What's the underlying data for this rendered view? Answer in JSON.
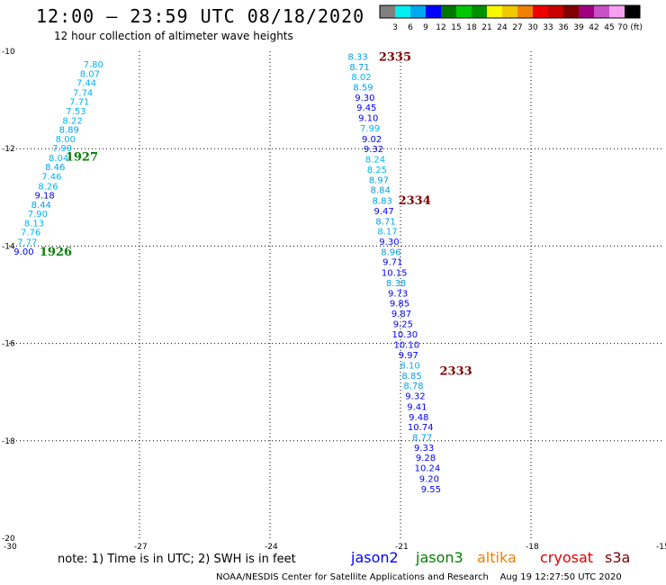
{
  "title": "12:00 – 23:59 UTC 08/18/2020",
  "subtitle": "12 hour collection of altimeter wave heights",
  "legend": {
    "colors": [
      "#808080",
      "#00f0f0",
      "#00a8f0",
      "#0000ff",
      "#007800",
      "#00c800",
      "#009000",
      "#f8f800",
      "#f0c800",
      "#f08000",
      "#f00000",
      "#c80000",
      "#800000",
      "#a00080",
      "#c850c8",
      "#f8a0f0",
      "#000000"
    ],
    "labels": [
      "3",
      "6",
      "9",
      "12",
      "15",
      "18",
      "21",
      "24",
      "27",
      "30",
      "33",
      "36",
      "39",
      "42",
      "45",
      "70 (ft)"
    ]
  },
  "axes": {
    "x_ticks": [
      "-30",
      "-27",
      "-24",
      "-21",
      "-18",
      "-15"
    ],
    "y_ticks": [
      "-10",
      "-12",
      "-14",
      "-16",
      "-18",
      "-20"
    ]
  },
  "note": "note: 1) Time is in UTC; 2) SWH is in feet",
  "missions": [
    {
      "name": "jason2",
      "color": "#0000ff"
    },
    {
      "name": "jason3",
      "color": "#008000"
    },
    {
      "name": "altika",
      "color": "#f08000"
    },
    {
      "name": "cryosat",
      "color": "#e00000"
    },
    {
      "name": "s3a",
      "color": "#800000"
    }
  ],
  "credit": "NOAA/NESDIS Center for Satellite Applications and Research",
  "timestamp": "Aug 19 12:27:50 UTC 2020",
  "chart_data": {
    "type": "scatter",
    "x_range": [
      -30,
      -15
    ],
    "y_range": [
      -20,
      -10
    ],
    "color_scale": "SWH (ft)",
    "tracks": [
      {
        "pass": "1926",
        "label_at": [
          -29.3,
          -14.1
        ],
        "label_color": "#008000",
        "points": [
          {
            "lon": -29.66,
            "lat": -14.1,
            "swh": "9.00"
          },
          {
            "lon": -29.58,
            "lat": -13.91,
            "swh": "7.77"
          },
          {
            "lon": -29.5,
            "lat": -13.71,
            "swh": "7.76"
          },
          {
            "lon": -29.42,
            "lat": -13.52,
            "swh": "8.13"
          },
          {
            "lon": -29.34,
            "lat": -13.33,
            "swh": "7.90"
          },
          {
            "lon": -29.26,
            "lat": -13.14,
            "swh": "8.44"
          },
          {
            "lon": -29.18,
            "lat": -12.95,
            "swh": "9.18"
          },
          {
            "lon": -29.1,
            "lat": -12.76,
            "swh": "8.26"
          }
        ]
      },
      {
        "pass": "1927",
        "label_at": [
          -28.7,
          -12.15
        ],
        "label_color": "#008000",
        "points": [
          {
            "lon": -29.02,
            "lat": -12.56,
            "swh": "7.46"
          },
          {
            "lon": -28.94,
            "lat": -12.37,
            "swh": "8.46"
          },
          {
            "lon": -28.86,
            "lat": -12.18,
            "swh": "8.04"
          },
          {
            "lon": -28.78,
            "lat": -11.98,
            "swh": "7.99"
          },
          {
            "lon": -28.7,
            "lat": -11.79,
            "swh": "8.00"
          },
          {
            "lon": -28.62,
            "lat": -11.6,
            "swh": "8.89"
          },
          {
            "lon": -28.54,
            "lat": -11.41,
            "swh": "8.22"
          },
          {
            "lon": -28.46,
            "lat": -11.22,
            "swh": "7.53"
          },
          {
            "lon": -28.38,
            "lat": -11.03,
            "swh": "7.71"
          },
          {
            "lon": -28.3,
            "lat": -10.84,
            "swh": "7.74"
          },
          {
            "lon": -28.22,
            "lat": -10.64,
            "swh": "7.44"
          },
          {
            "lon": -28.14,
            "lat": -10.45,
            "swh": "8.07"
          },
          {
            "lon": -28.06,
            "lat": -10.26,
            "swh": "7.80"
          }
        ]
      },
      {
        "pass": "2335",
        "label_at": [
          -21.5,
          -10.1
        ],
        "label_color": "#800000",
        "points": [
          {
            "lon": -21.98,
            "lat": -10.1,
            "swh": "8.33"
          },
          {
            "lon": -21.94,
            "lat": -10.31,
            "swh": "8.71"
          },
          {
            "lon": -21.9,
            "lat": -10.52,
            "swh": "8.02"
          },
          {
            "lon": -21.86,
            "lat": -10.73,
            "swh": "8.59"
          },
          {
            "lon": -21.82,
            "lat": -10.94,
            "swh": "9.30"
          },
          {
            "lon": -21.78,
            "lat": -11.15,
            "swh": "9.45"
          },
          {
            "lon": -21.74,
            "lat": -11.36,
            "swh": "9.10"
          },
          {
            "lon": -21.7,
            "lat": -11.57,
            "swh": "7.99"
          },
          {
            "lon": -21.66,
            "lat": -11.79,
            "swh": "9.02"
          },
          {
            "lon": -21.62,
            "lat": -12.0,
            "swh": "9.32"
          },
          {
            "lon": -21.58,
            "lat": -12.21,
            "swh": "8.24"
          },
          {
            "lon": -21.54,
            "lat": -12.42,
            "swh": "8.25"
          },
          {
            "lon": -21.5,
            "lat": -12.63,
            "swh": "8.97"
          }
        ]
      },
      {
        "pass": "2334",
        "label_at": [
          -21.05,
          -13.05
        ],
        "label_color": "#800000",
        "points": [
          {
            "lon": -21.46,
            "lat": -12.84,
            "swh": "8.84"
          },
          {
            "lon": -21.42,
            "lat": -13.06,
            "swh": "8.83"
          },
          {
            "lon": -21.38,
            "lat": -13.27,
            "swh": "9.47"
          },
          {
            "lon": -21.34,
            "lat": -13.48,
            "swh": "8.71"
          },
          {
            "lon": -21.3,
            "lat": -13.69,
            "swh": "8.17"
          },
          {
            "lon": -21.26,
            "lat": -13.9,
            "swh": "9.30"
          },
          {
            "lon": -21.22,
            "lat": -14.11,
            "swh": "8.96"
          },
          {
            "lon": -21.18,
            "lat": -14.32,
            "swh": "9.71"
          },
          {
            "lon": -21.14,
            "lat": -14.54,
            "swh": "10.15"
          },
          {
            "lon": -21.1,
            "lat": -14.75,
            "swh": "8.38"
          },
          {
            "lon": -21.06,
            "lat": -14.96,
            "swh": "9.73"
          },
          {
            "lon": -21.02,
            "lat": -15.17,
            "swh": "9.85"
          },
          {
            "lon": -20.98,
            "lat": -15.38,
            "swh": "9.87"
          },
          {
            "lon": -20.94,
            "lat": -15.59,
            "swh": "9.25"
          },
          {
            "lon": -20.9,
            "lat": -15.8,
            "swh": "10.30"
          }
        ]
      },
      {
        "pass": "2333",
        "label_at": [
          -20.1,
          -16.55
        ],
        "label_color": "#800000",
        "points": [
          {
            "lon": -20.86,
            "lat": -16.02,
            "swh": "10.10"
          },
          {
            "lon": -20.82,
            "lat": -16.23,
            "swh": "9.97"
          },
          {
            "lon": -20.78,
            "lat": -16.44,
            "swh": "8.10"
          },
          {
            "lon": -20.74,
            "lat": -16.65,
            "swh": "8.85"
          },
          {
            "lon": -20.7,
            "lat": -16.86,
            "swh": "8.78"
          },
          {
            "lon": -20.66,
            "lat": -17.07,
            "swh": "9.32"
          },
          {
            "lon": -20.62,
            "lat": -17.29,
            "swh": "9.41"
          },
          {
            "lon": -20.58,
            "lat": -17.5,
            "swh": "9.48"
          },
          {
            "lon": -20.54,
            "lat": -17.71,
            "swh": "10.74"
          },
          {
            "lon": -20.5,
            "lat": -17.92,
            "swh": "8.77"
          },
          {
            "lon": -20.46,
            "lat": -18.13,
            "swh": "9.33"
          },
          {
            "lon": -20.42,
            "lat": -18.34,
            "swh": "9.28"
          },
          {
            "lon": -20.38,
            "lat": -18.55,
            "swh": "10.24"
          },
          {
            "lon": -20.34,
            "lat": -18.77,
            "swh": "9.20"
          },
          {
            "lon": -20.3,
            "lat": -18.98,
            "swh": "9.55"
          }
        ]
      }
    ]
  }
}
